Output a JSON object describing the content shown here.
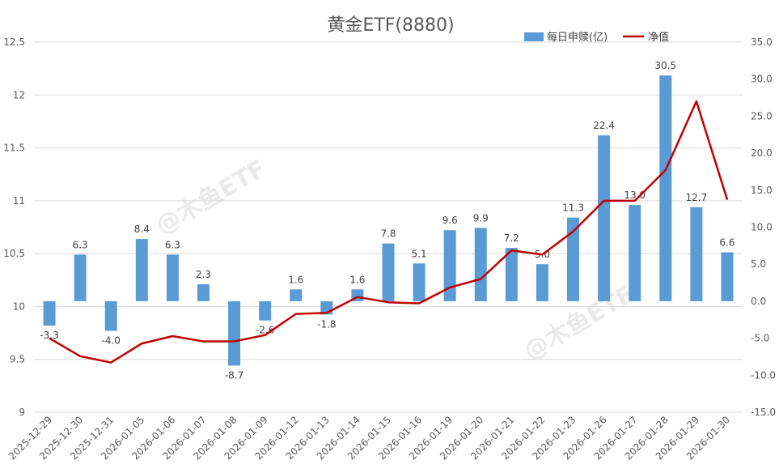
{
  "chart_data": {
    "type": "bar+line",
    "title": "黄金ETF(8880)",
    "watermark": "@木鱼ETF",
    "categories": [
      "2025-12-29",
      "2025-12-30",
      "2025-12-31",
      "2026-01-05",
      "2026-01-06",
      "2026-01-07",
      "2026-01-08",
      "2026-01-09",
      "2026-01-12",
      "2026-01-13",
      "2026-01-14",
      "2026-01-15",
      "2026-01-16",
      "2026-01-19",
      "2026-01-20",
      "2026-01-21",
      "2026-01-22",
      "2026-01-23",
      "2026-01-26",
      "2026-01-27",
      "2026-01-28",
      "2026-01-29",
      "2026-01-30"
    ],
    "series": [
      {
        "name": "每日申赎(亿)",
        "type": "bar",
        "axis": "right",
        "color": "#5b9bd5",
        "values": [
          -3.3,
          6.3,
          -4.0,
          8.4,
          6.3,
          2.3,
          -8.7,
          -2.6,
          1.6,
          -1.8,
          1.6,
          7.8,
          5.1,
          9.6,
          9.9,
          7.2,
          5.0,
          11.3,
          22.4,
          13.0,
          30.5,
          12.7,
          6.6
        ],
        "labels": [
          "-3.3",
          "6.3",
          "-4.0",
          "8.4",
          "6.3",
          "2.3",
          "-8.7",
          "-2.6",
          "1.6",
          "-1.8",
          "1.6",
          "7.8",
          "5.1",
          "9.6",
          "9.9",
          "7.2",
          "5.0",
          "11.3",
          "22.4",
          "13.0",
          "30.5",
          "12.7",
          "6.6"
        ]
      },
      {
        "name": "净值",
        "type": "line",
        "axis": "left",
        "color": "#c00000",
        "values": [
          9.7,
          9.53,
          9.47,
          9.65,
          9.72,
          9.67,
          9.67,
          9.73,
          9.93,
          9.94,
          10.09,
          10.04,
          10.03,
          10.18,
          10.26,
          10.53,
          10.49,
          10.71,
          11.0,
          11.0,
          11.29,
          11.94,
          11.01
        ]
      }
    ],
    "y_left": {
      "min": 9,
      "max": 12.5,
      "ticks": [
        "12.5",
        "12",
        "11.5",
        "11",
        "10.5",
        "10",
        "9.5",
        "9"
      ]
    },
    "y_right": {
      "min": -15,
      "max": 35,
      "ticks": [
        "35.0",
        "30.0",
        "25.0",
        "20.0",
        "15.0",
        "10.0",
        "5.0",
        "0.0",
        "-5.0",
        "-10.0",
        "-15.0"
      ]
    },
    "grid": true,
    "legend": "top-right"
  }
}
